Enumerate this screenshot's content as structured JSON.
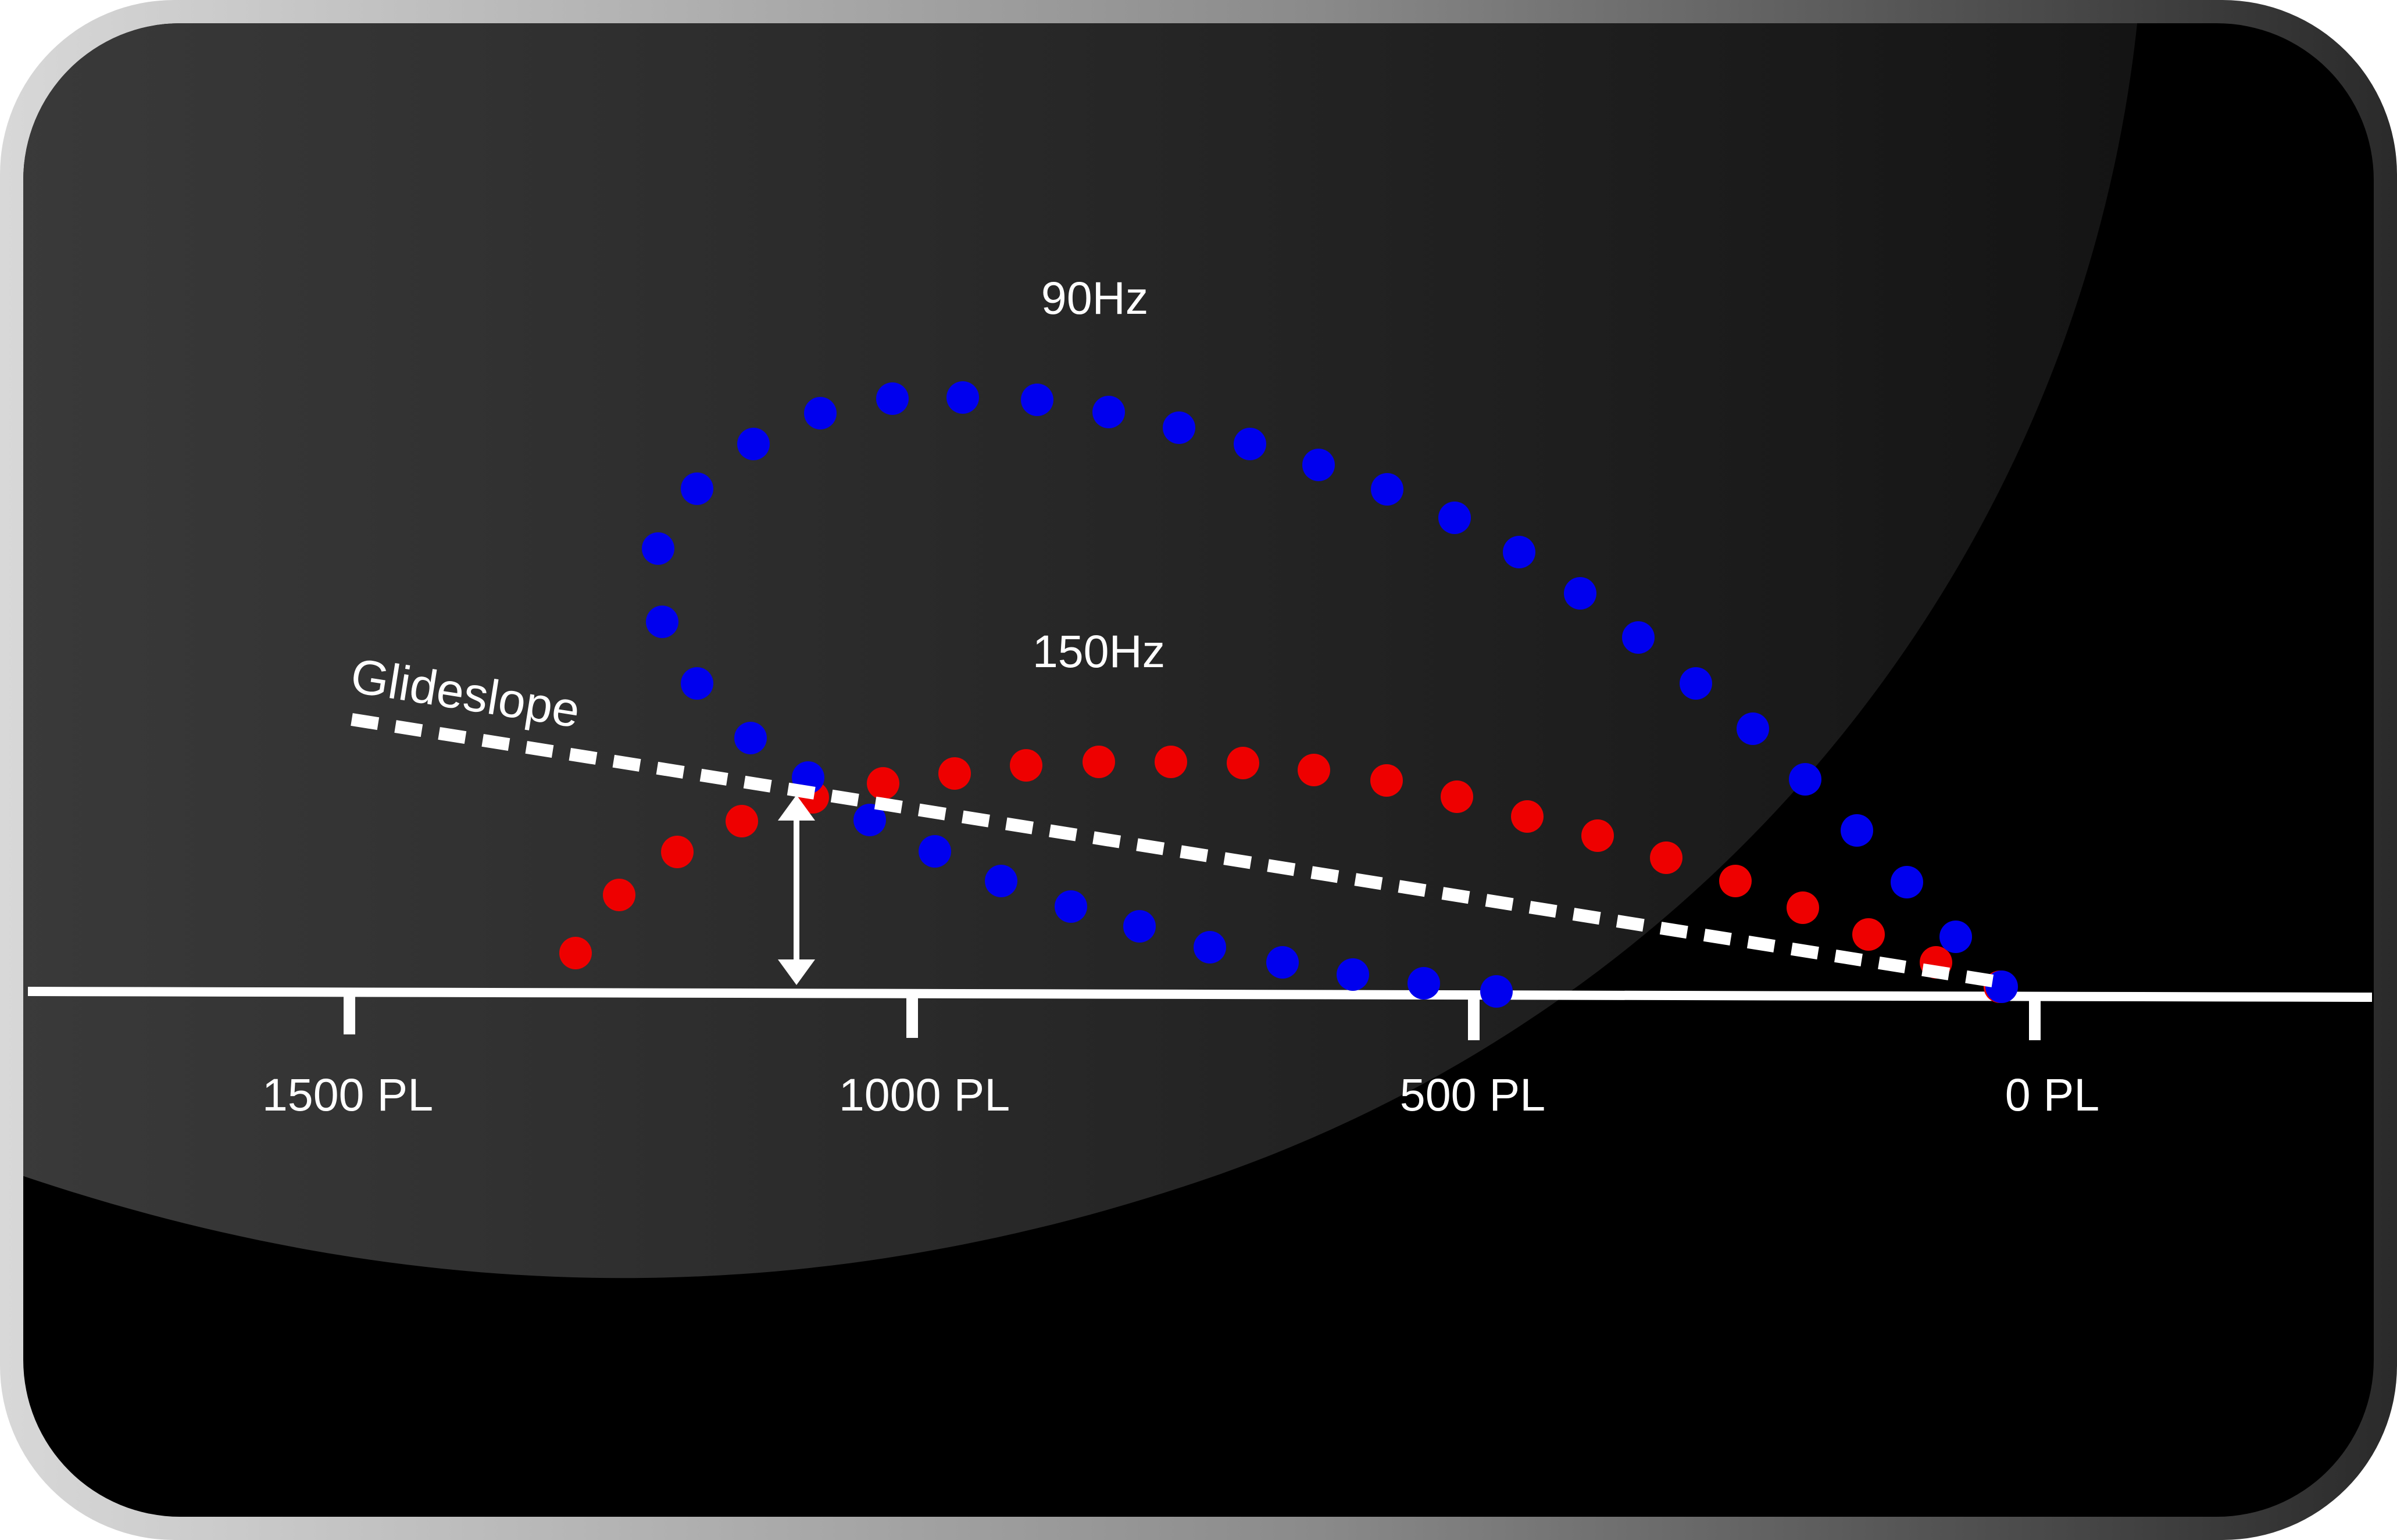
{
  "diagram": {
    "labels": {
      "lobe_90": "90Hz",
      "lobe_150": "150Hz",
      "glideslope": "Glideslope"
    },
    "axis": {
      "ticks": [
        {
          "label": "1500 PL",
          "value": 1500
        },
        {
          "label": "1000 PL",
          "value": 1000
        },
        {
          "label": "500 PL",
          "value": 500
        },
        {
          "label": "0 PL",
          "value": 0
        }
      ]
    },
    "colors": {
      "lobe_90": "#0000ee",
      "lobe_150": "#ee0000",
      "axis": "#ffffff",
      "glideslope": "#ffffff",
      "panel": "#000000",
      "frame": "#3a3a3a"
    }
  }
}
